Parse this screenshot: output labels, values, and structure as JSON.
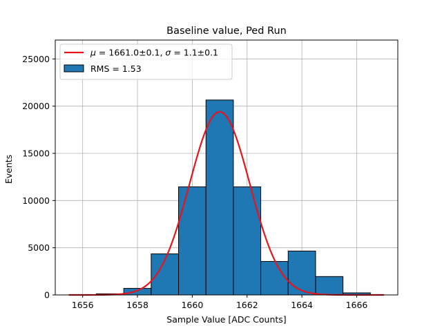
{
  "chart_data": {
    "type": "bar",
    "title": "Baseline value, Ped Run",
    "xlabel": "Sample Value [ADC Counts]",
    "ylabel": "Events",
    "xlim": [
      1655.0,
      1667.5
    ],
    "ylim": [
      0,
      27000
    ],
    "grid": true,
    "legend_position": "top-left",
    "x_ticks": [
      {
        "value": 1656,
        "label": "1656"
      },
      {
        "value": 1658,
        "label": "1658"
      },
      {
        "value": 1660,
        "label": "1660"
      },
      {
        "value": 1662,
        "label": "1662"
      },
      {
        "value": 1664,
        "label": "1664"
      },
      {
        "value": 1666,
        "label": "1666"
      }
    ],
    "y_ticks": [
      {
        "value": 0,
        "label": "0"
      },
      {
        "value": 5000,
        "label": "5000"
      },
      {
        "value": 10000,
        "label": "10000"
      },
      {
        "value": 15000,
        "label": "15000"
      },
      {
        "value": 20000,
        "label": "20000"
      },
      {
        "value": 25000,
        "label": "25000"
      }
    ],
    "histogram": {
      "name": "RMS = 1.53",
      "bin_edges": [
        1655.5,
        1656.5,
        1657.5,
        1658.5,
        1659.5,
        1660.5,
        1661.5,
        1662.5,
        1663.5,
        1664.5,
        1665.5,
        1666.5
      ],
      "counts": [
        20,
        120,
        700,
        4350,
        11450,
        20650,
        11450,
        3550,
        4650,
        1950,
        220
      ],
      "color": "#1f77b4",
      "edge_color": "#000000"
    },
    "fit": {
      "name": "μ = 1661.0±0.1, σ = 1.1±0.1",
      "name_parts": {
        "mu_symbol": "μ",
        "mu_text": " = 1661.0±0.1, ",
        "sigma_symbol": "σ",
        "sigma_text": " = 1.1±0.1"
      },
      "mu": 1661.0,
      "sigma": 1.1,
      "amplitude": 19400,
      "x_range": [
        1655.5,
        1667.0
      ],
      "color": "#e8131b"
    }
  }
}
